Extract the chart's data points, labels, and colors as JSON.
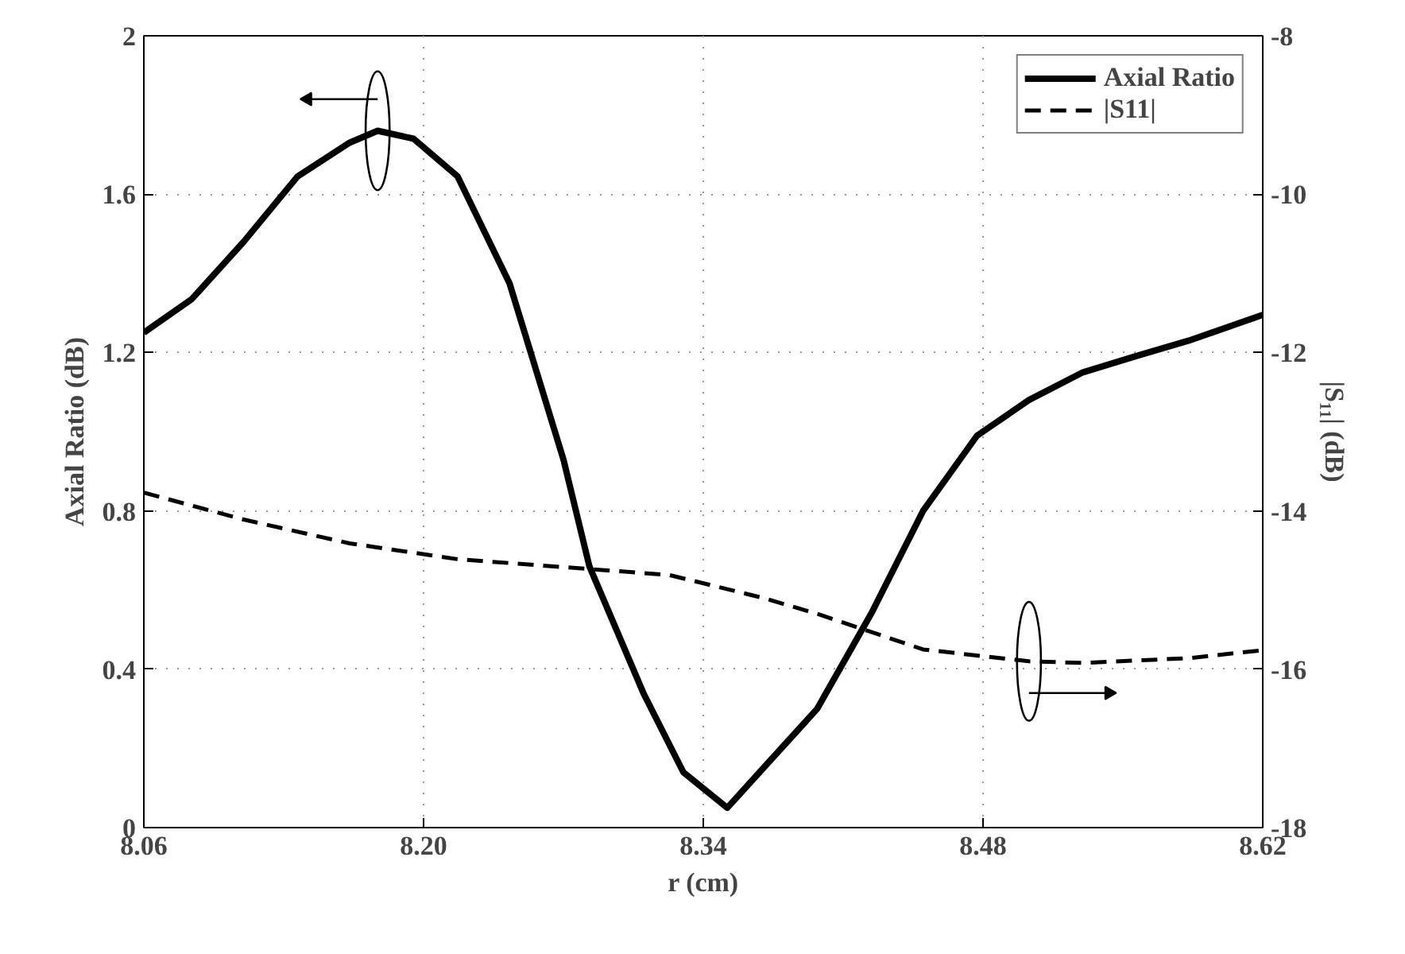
{
  "chart_data": {
    "type": "line",
    "xlabel": "r (cm)",
    "ylabel": "Axial Ratio (dB)",
    "y2label": "|S₁₁| (dB)",
    "xlim": [
      8.06,
      8.62
    ],
    "xticks": [
      8.06,
      {
        "value": 8.2,
        "label": "8.20"
      },
      8.34,
      8.48,
      8.62
    ],
    "ylim": [
      0,
      2
    ],
    "yticks": [
      0,
      0.4,
      0.8,
      1.2,
      1.6,
      2
    ],
    "y2lim": [
      -18,
      -8
    ],
    "y2ticks": [
      -18,
      -16,
      -14,
      -12,
      -10,
      -8
    ],
    "grid": true,
    "legend": "top right",
    "series": [
      {
        "name": "Axial Ratio",
        "color": "#000000",
        "line_style": "solid",
        "x": [
          8.06,
          8.084,
          8.11,
          8.137,
          8.163,
          8.177,
          8.195,
          8.217,
          8.243,
          8.27,
          8.283,
          8.31,
          8.33,
          8.352,
          8.37,
          8.397,
          8.424,
          8.45,
          8.477,
          8.503,
          8.53,
          8.556,
          8.583,
          8.62
        ],
        "values": [
          1.25,
          1.335,
          1.48,
          1.645,
          1.73,
          1.76,
          1.74,
          1.645,
          1.375,
          0.93,
          0.66,
          0.34,
          0.14,
          0.05,
          0.15,
          0.3,
          0.54,
          0.8,
          0.99,
          1.08,
          1.15,
          1.19,
          1.23,
          1.295
        ]
      },
      {
        "name": "|S11|",
        "color": "#000000",
        "line_style": "dashed",
        "axis": "y2",
        "x": [
          8.06,
          8.11,
          8.163,
          8.217,
          8.27,
          8.323,
          8.37,
          8.397,
          8.45,
          8.503,
          8.53,
          8.583,
          8.62
        ],
        "values": [
          -13.77,
          -14.11,
          -14.41,
          -14.61,
          -14.71,
          -14.81,
          -15.1,
          -15.3,
          -15.75,
          -15.9,
          -15.92,
          -15.86,
          -15.76
        ]
      }
    ]
  }
}
